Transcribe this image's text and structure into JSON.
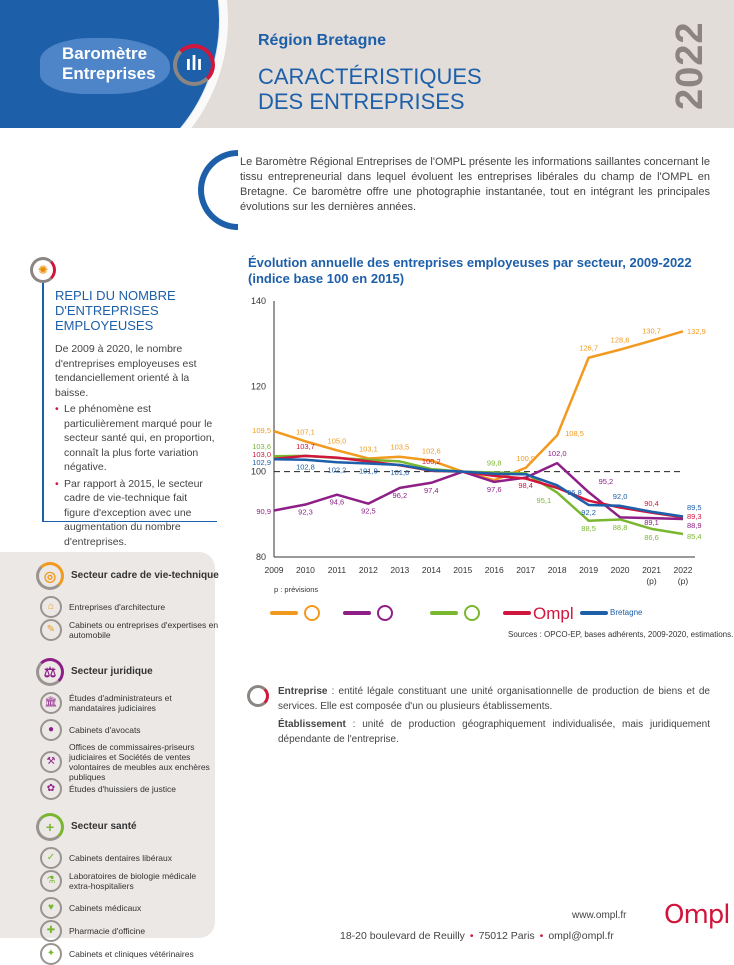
{
  "header": {
    "brand_line1": "Baromètre",
    "brand_line2": "Entreprises",
    "region": "Région Bretagne",
    "title_line1": "CARACTÉRISTIQUES",
    "title_line2": "DES ENTREPRISES",
    "year": "2022",
    "brand_color": "#1d5fa9"
  },
  "intro": "Le Baromètre Régional Entreprises de l'OMPL présente les informations saillantes concernant le tissu entrepreneurial dans lequel évoluent les entreprises libérales du champ de l'OMPL en Bretagne. Ce baromètre offre une photographie instantanée, tout en intégrant les principales évolutions sur les dernières années.",
  "repli": {
    "title": "REPLI DU NOMBRE D'ENTREPRISES EMPLOYEUSES",
    "text": "De 2009 à 2020, le nombre d'entreprises employeuses est tendanciellement orienté à la baisse.",
    "bullets": [
      "Le phénomène est particulièrement marqué pour le secteur santé qui, en proportion, connaît la plus forte variation négative.",
      "Par rapport à 2015, le secteur cadre de vie-technique fait figure d'exception avec une augmentation du nombre d'entreprises."
    ]
  },
  "chart_data": {
    "type": "line",
    "title": "Évolution annuelle des entreprises employeuses par secteur, 2009-2022 (indice base 100 en 2015)",
    "x": [
      "2009",
      "2010",
      "2011",
      "2012",
      "2013",
      "2014",
      "2015",
      "2016",
      "2017",
      "2018",
      "2019",
      "2020",
      "2021",
      "2022"
    ],
    "x_sublabels": [
      "",
      "",
      "",
      "",
      "",
      "",
      "",
      "",
      "",
      "",
      "",
      "",
      "(p)",
      "(p)"
    ],
    "ylim": [
      80,
      140
    ],
    "yticks": [
      "80",
      "100",
      "120",
      "140"
    ],
    "reference_line": 100,
    "note": "p : prévisions",
    "sources": "Sources : OPCO-EP, bases adhérents, 2009-2020, estimations.",
    "series": [
      {
        "legend": "cadre-de-vie-technique-icon",
        "color": "#f29a1f",
        "values": [
          109.5,
          107.1,
          105.0,
          103.1,
          103.5,
          102.6,
          100,
          98.0,
          100.9,
          108.5,
          126.7,
          128.6,
          130.7,
          132.9
        ],
        "labels": [
          "109,5",
          "107,1",
          "105,0",
          "103,1",
          "103,5",
          "102,6",
          null,
          null,
          "100,9",
          "108,5",
          "126,7",
          "128,6",
          "130,7",
          "132,9"
        ]
      },
      {
        "legend": "juridique-icon",
        "color": "#8e1f87",
        "values": [
          90.9,
          92.3,
          94.6,
          92.5,
          96.2,
          97.4,
          100,
          97.6,
          98.6,
          102.0,
          95.2,
          89.3,
          89.1,
          88.9
        ],
        "labels": [
          "90,9",
          "92,3",
          "94,6",
          "92,5",
          "96,2",
          "97,4",
          null,
          "97,6",
          null,
          "102,0",
          "95,2",
          null,
          "89,1",
          "88,9"
        ]
      },
      {
        "legend": "sante-icon",
        "color": "#7ab731",
        "values": [
          103.6,
          103.7,
          103.2,
          102.8,
          102.4,
          100.6,
          100,
          99.8,
          99.6,
          95.1,
          88.5,
          88.8,
          86.6,
          85.4
        ],
        "labels": [
          "103,6",
          null,
          null,
          null,
          null,
          null,
          null,
          "99,8",
          null,
          "95,1",
          "88,5",
          "88,8",
          "86,6",
          "85,4"
        ]
      },
      {
        "legend": "Ompl",
        "color": "#d0163c",
        "values": [
          103.0,
          103.7,
          103.3,
          102.4,
          101.5,
          100.2,
          100,
          99.0,
          98.4,
          96.2,
          93.2,
          91.6,
          90.4,
          89.3
        ],
        "labels": [
          "103,0",
          "103,7",
          null,
          null,
          null,
          "100,2",
          null,
          null,
          "98,4",
          null,
          null,
          null,
          "90,4",
          "89,3"
        ]
      },
      {
        "legend": "Bretagne",
        "color": "#1d5fa9",
        "values": [
          102.9,
          102.8,
          102.2,
          101.9,
          101.6,
          100.3,
          100,
          99.5,
          99.4,
          96.8,
          92.2,
          92.0,
          90.6,
          89.5
        ],
        "labels": [
          "102,9",
          "102,8",
          "102,2",
          "101,9",
          "101,6",
          null,
          null,
          null,
          null,
          "96,8",
          "92,2",
          "92,0",
          null,
          "89,5"
        ]
      }
    ]
  },
  "definitions": [
    {
      "term": "Entreprise",
      "text": " : entité légale constituant une unité organisationnelle de production de biens et de services. Elle est composée d'un ou plusieurs établissements."
    },
    {
      "term": "Établissement",
      "text": " : unité de production géographiquement individualisée, mais juridiquement dépendante de l'entreprise."
    }
  ],
  "legend": {
    "sectors": [
      {
        "name": "Secteur cadre de vie-technique",
        "color": "#f29a1f",
        "items": [
          "Entreprises d'architecture",
          "Cabinets ou entreprises d'expertises en automobile"
        ]
      },
      {
        "name": "Secteur juridique",
        "color": "#8e1f87",
        "items": [
          "Études d'administrateurs et mandataires judiciaires",
          "Cabinets d'avocats",
          "Offices de commissaires-priseurs judiciaires et Sociétés de ventes volontaires de meubles aux enchères publiques",
          "Études d'huissiers de justice"
        ]
      },
      {
        "name": "Secteur santé",
        "color": "#7ab731",
        "items": [
          "Cabinets dentaires libéraux",
          "Laboratoires de biologie médicale extra-hospitaliers",
          "Cabinets médicaux",
          "Pharmacie d'officine",
          "Cabinets et cliniques vétérinaires"
        ]
      }
    ]
  },
  "footer": {
    "website": "www.ompl.fr",
    "address": "18-20 boulevard de Reuilly",
    "city": "75012 Paris",
    "email": "ompl@ompl.fr",
    "logo": "Ompl"
  }
}
